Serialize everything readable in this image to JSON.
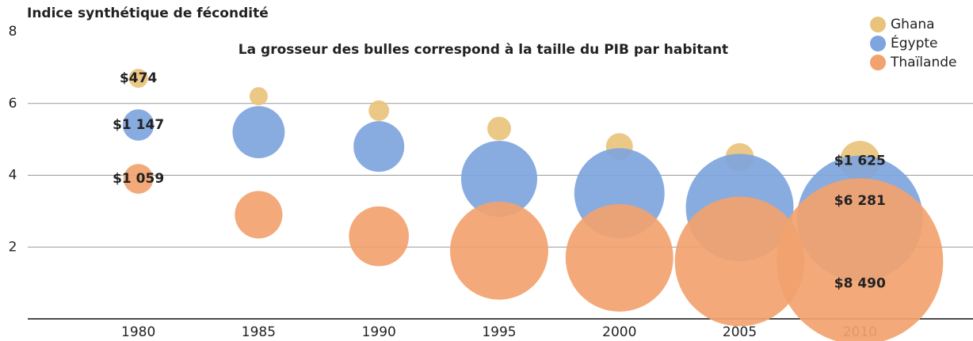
{
  "chart_data": {
    "type": "bubble",
    "title": "Indice synthétique de fécondité",
    "subtitle": "La grosseur des bulles correspond à la taille du PIB par habitant",
    "x": [
      1980,
      1985,
      1990,
      1995,
      2000,
      2005,
      2010
    ],
    "xlim": [
      1975.4,
      2014.7
    ],
    "xticks": [
      1980,
      1985,
      1990,
      1995,
      2000,
      2005,
      2010
    ],
    "ylim": [
      0,
      8
    ],
    "yticks": [
      2,
      4,
      6,
      8
    ],
    "grid": true,
    "legend": "top-right",
    "series": [
      {
        "name": "Ghana",
        "color": "#e9c37c",
        "values": [
          6.7,
          6.2,
          5.8,
          5.3,
          4.8,
          4.5,
          4.4
        ],
        "sizes": [
          474,
          430,
          560,
          730,
          900,
          990,
          1625
        ],
        "value_labels": [
          "$474",
          null,
          null,
          null,
          null,
          null,
          "$1 625"
        ]
      },
      {
        "name": "Égypte",
        "color": "#7ea5dd",
        "values": [
          5.4,
          5.2,
          4.8,
          3.9,
          3.5,
          3.1,
          2.8
        ],
        "sizes": [
          1147,
          2280,
          2200,
          3580,
          4350,
          5300,
          6281
        ],
        "value_labels": [
          "$1 147",
          null,
          null,
          null,
          null,
          null,
          "$6 281"
        ]
      },
      {
        "name": "Thaïlande",
        "color": "#f2a26e",
        "values": [
          3.9,
          2.9,
          2.3,
          1.9,
          1.7,
          1.6,
          1.6
        ],
        "sizes": [
          1059,
          2030,
          2700,
          4780,
          5300,
          6500,
          8490
        ],
        "value_labels": [
          "$1 059",
          null,
          null,
          null,
          null,
          null,
          "$8 490"
        ]
      }
    ]
  }
}
